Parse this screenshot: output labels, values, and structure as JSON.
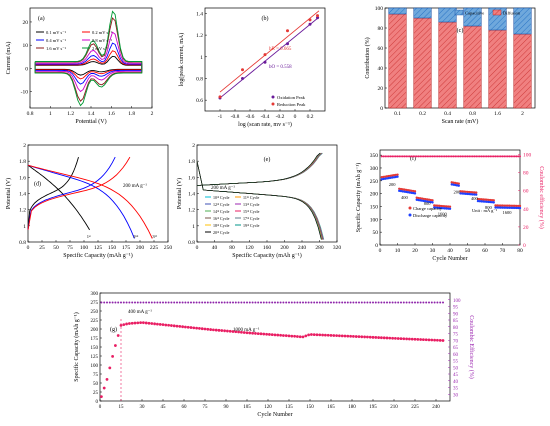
{
  "figure": {
    "panels": [
      "(a)",
      "(b)",
      "(c)",
      "(d)",
      "(e)",
      "(f)",
      "(g)"
    ]
  },
  "chart_data": [
    {
      "id": "a",
      "type": "line",
      "xlabel": "Potential (V)",
      "ylabel": "Current (mA)",
      "xlim": [
        0.8,
        2.0
      ],
      "ylim": [
        -17,
        26
      ],
      "xticks": [
        0.8,
        1.0,
        1.2,
        1.4,
        1.6,
        1.8,
        2.0
      ],
      "yticks": [
        -10,
        0,
        10,
        20
      ],
      "legend": [
        "0.1 mV s⁻¹",
        "0.2 mV s⁻¹",
        "0.4 mV s⁻¹",
        "0.8 mV s⁻¹",
        "1.6 mV s⁻¹",
        "2 mV s⁻¹"
      ],
      "series": [
        {
          "name": "0.1 mV s⁻¹",
          "color": "#000000",
          "scale": 0.18
        },
        {
          "name": "0.2 mV s⁻¹",
          "color": "#ff0000",
          "scale": 0.28
        },
        {
          "name": "0.4 mV s⁻¹",
          "color": "#0000ff",
          "scale": 0.42
        },
        {
          "name": "0.8 mV s⁻¹",
          "color": "#cc00cc",
          "scale": 0.62
        },
        {
          "name": "1.6 mV s⁻¹",
          "color": "#8b1a1a",
          "scale": 0.88
        },
        {
          "name": "2 mV s⁻¹",
          "color": "#009933",
          "scale": 1.0
        }
      ]
    },
    {
      "id": "b",
      "type": "scatter",
      "xlabel": "log (scan rate, mv s⁻¹)",
      "ylabel": "log(peak current, mA)",
      "xlim": [
        -1.2,
        0.4
      ],
      "ylim": [
        0.5,
        1.45
      ],
      "xticks": [
        -1.0,
        -0.8,
        -0.6,
        -0.4,
        -0.2,
        0.0,
        0.2
      ],
      "yticks": [
        0.6,
        0.8,
        1.0,
        1.2,
        1.4
      ],
      "annotations": [
        "bR = 0.665",
        "bO = 0.558"
      ],
      "legend": [
        "Oxidation Peak",
        "Reduction Peak"
      ],
      "series": [
        {
          "name": "Oxidation Peak",
          "color": "#6a1b9a",
          "x": [
            -1.0,
            -0.7,
            -0.4,
            -0.1,
            0.2,
            0.3
          ],
          "y": [
            0.62,
            0.8,
            0.95,
            1.12,
            1.3,
            1.36
          ]
        },
        {
          "name": "Reduction Peak",
          "color": "#e53935",
          "x": [
            -1.0,
            -0.7,
            -0.4,
            -0.1,
            0.2,
            0.3
          ],
          "y": [
            0.63,
            0.88,
            1.02,
            1.24,
            1.34,
            1.38
          ]
        }
      ]
    },
    {
      "id": "c",
      "type": "bar",
      "xlabel": "Scan rate (mV)",
      "ylabel": "Contribution (%)",
      "ylim": [
        0,
        100
      ],
      "yticks": [
        0,
        20,
        40,
        60,
        80,
        100
      ],
      "categories": [
        "0.1",
        "0.2",
        "0.4",
        "0.8",
        "1.6",
        "2"
      ],
      "legend": [
        "Capacitive",
        "Diffusion"
      ],
      "series": [
        {
          "name": "Diffusion",
          "color": "#f08080",
          "values": [
            94,
            90,
            86,
            82,
            78,
            74
          ]
        },
        {
          "name": "Capacitive",
          "color": "#6fa8dc",
          "values": [
            6,
            10,
            14,
            18,
            22,
            26
          ]
        }
      ]
    },
    {
      "id": "d",
      "type": "line",
      "xlabel": "Specific Capacity (mAh g⁻¹)",
      "ylabel": "Potential (V)",
      "xlim": [
        0,
        250
      ],
      "ylim": [
        0.8,
        2.0
      ],
      "xticks": [
        0,
        25,
        50,
        75,
        100,
        125,
        150,
        175,
        200,
        225,
        250
      ],
      "yticks": [
        0.8,
        1.0,
        1.2,
        1.4,
        1.6,
        1.8,
        2.0
      ],
      "annotations": [
        "200 mA g⁻¹",
        "1ˢᵗ",
        "2ⁿᵈ",
        "3ʳᵈ"
      ],
      "series": [
        {
          "name": "1st",
          "color": "#000000",
          "capacity": 110
        },
        {
          "name": "2nd",
          "color": "#0000ff",
          "capacity": 190
        },
        {
          "name": "3rd",
          "color": "#ff0000",
          "capacity": 222
        }
      ]
    },
    {
      "id": "e",
      "type": "line",
      "xlabel": "Specific Capacity (mAh g⁻¹)",
      "ylabel": "Potential (V)",
      "xlim": [
        0,
        320
      ],
      "ylim": [
        0.8,
        2.0
      ],
      "xticks": [
        0,
        40,
        80,
        120,
        160,
        200,
        240,
        280,
        320
      ],
      "yticks": [
        0.8,
        1.0,
        1.2,
        1.4,
        1.6,
        1.8,
        2.0
      ],
      "annotations": [
        "200 mA g⁻¹"
      ],
      "legend": [
        "10ᵗʰ Cycle",
        "11ᵗʰ Cycle",
        "12ᵗʰ Cycle",
        "13ᵗʰ Cycle",
        "14ᵗʰ Cycle",
        "15ᵗʰ Cycle",
        "16ᵗʰ Cycle",
        "17ᵗʰ Cycle",
        "18ᵗʰ Cycle",
        "19ᵗʰ Cycle",
        "20ᵗʰ Cycle"
      ],
      "colors": [
        "#00bcd4",
        "#ff9800",
        "#3f51b5",
        "#9c27b0",
        "#4caf50",
        "#e91e63",
        "#795548",
        "#607d8b",
        "#ffc107",
        "#009688",
        "#000000"
      ]
    },
    {
      "id": "f",
      "type": "scatter",
      "xlabel": "Cycle Number",
      "ylabel": "Specific Capacity (mAh g⁻¹)",
      "ylabel2": "Coulombic efficiency (%)",
      "xlim": [
        0,
        80
      ],
      "ylim": [
        0,
        370
      ],
      "ylim2": [
        0,
        105
      ],
      "xticks": [
        0,
        10,
        20,
        30,
        40,
        50,
        60,
        70,
        80
      ],
      "yticks": [
        0,
        50,
        100,
        150,
        200,
        250,
        300,
        350
      ],
      "yticks2": [
        0,
        20,
        40,
        60,
        80,
        100
      ],
      "annotations": [
        "200",
        "400",
        "800",
        "1600",
        "200",
        "400",
        "800",
        "1600",
        "Unit : mA g⁻¹"
      ],
      "legend": [
        "Charge capacity",
        "Discharge capacity"
      ],
      "rate_segments": [
        {
          "rate": "200",
          "cycles": [
            1,
            10
          ],
          "capacity": [
            260,
            270
          ]
        },
        {
          "rate": "400",
          "cycles": [
            11,
            20
          ],
          "capacity": [
            215,
            205
          ]
        },
        {
          "rate": "800",
          "cycles": [
            21,
            30
          ],
          "capacity": [
            180,
            170
          ]
        },
        {
          "rate": "1600",
          "cycles": [
            31,
            40
          ],
          "capacity": [
            150,
            145
          ]
        },
        {
          "rate": "200",
          "cycles": [
            41,
            45
          ],
          "capacity": [
            240,
            235
          ]
        },
        {
          "rate": "400",
          "cycles": [
            46,
            55
          ],
          "capacity": [
            205,
            200
          ]
        },
        {
          "rate": "800",
          "cycles": [
            56,
            65
          ],
          "capacity": [
            175,
            170
          ]
        },
        {
          "rate": "1600",
          "cycles": [
            66,
            80
          ],
          "capacity": [
            150,
            148
          ]
        }
      ],
      "efficiency": 98
    },
    {
      "id": "g",
      "type": "scatter",
      "xlabel": "Cycle Number",
      "ylabel": "Specific Capacity (mAh g⁻¹)",
      "ylabel2": "Coulombic Efficiency (%)",
      "xlim": [
        0,
        250
      ],
      "ylim": [
        0,
        300
      ],
      "ylim2": [
        25,
        105
      ],
      "xticks": [
        0,
        15,
        30,
        45,
        60,
        75,
        90,
        105,
        120,
        135,
        150,
        165,
        180,
        195,
        210,
        225,
        240
      ],
      "yticks": [
        0,
        25,
        50,
        75,
        100,
        125,
        150,
        175,
        200,
        225,
        250,
        275,
        300
      ],
      "yticks2": [
        30,
        35,
        40,
        45,
        50,
        55,
        60,
        65,
        70,
        75,
        80,
        85,
        90,
        95,
        100
      ],
      "annotations": [
        "400 mA g⁻¹",
        "1000 mA g⁻¹"
      ],
      "capacity_points": [
        [
          0,
          0
        ],
        [
          5,
          60
        ],
        [
          10,
          140
        ],
        [
          15,
          210
        ],
        [
          20,
          215
        ],
        [
          30,
          218
        ],
        [
          50,
          210
        ],
        [
          80,
          198
        ],
        [
          110,
          188
        ],
        [
          145,
          178
        ],
        [
          150,
          185
        ],
        [
          200,
          176
        ],
        [
          245,
          168
        ]
      ],
      "efficiency": 98
    }
  ]
}
